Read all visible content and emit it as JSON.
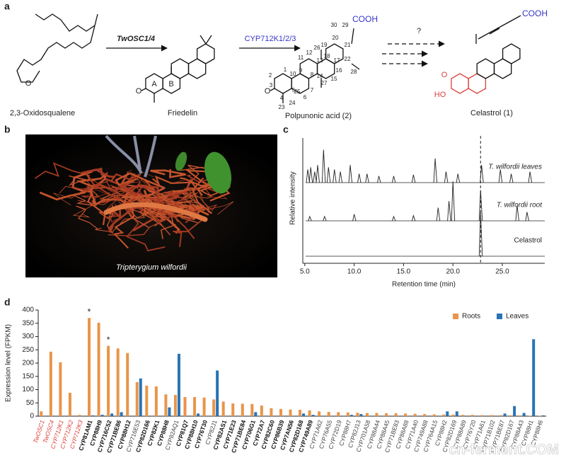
{
  "panel_a": {
    "label": "a",
    "substrate": "2,3-Oxidosqualene",
    "enzyme1": "TwOSC1/4",
    "product1": "Friedelin",
    "enzyme2": "CYP712K1/2/3",
    "product2": "Polpunonic acid (2)",
    "product3": "Celastrol (1)",
    "question": "?",
    "cooh_labels": [
      "COOH",
      "COOH"
    ],
    "ring_labels": [
      "A",
      "B"
    ],
    "heteroatoms": [
      "O",
      "O",
      "O",
      "O",
      "HO"
    ],
    "atom_numbers": [
      "1",
      "2",
      "3",
      "4",
      "5",
      "6",
      "7",
      "8",
      "9",
      "10",
      "11",
      "12",
      "13",
      "14",
      "15",
      "16",
      "17",
      "18",
      "19",
      "20",
      "21",
      "22",
      "23",
      "24",
      "25",
      "26",
      "27",
      "28",
      "29",
      "30"
    ]
  },
  "panel_b": {
    "label": "b",
    "caption": "Tripterygium wilfordii"
  },
  "panel_c": {
    "label": "c",
    "chart_data": {
      "type": "chromatogram",
      "x_label": "Retention time (min)",
      "y_label": "Relative intensity",
      "xlim": [
        4.8,
        29.3
      ],
      "xticks": [
        {
          "value": 5,
          "label": "5.0"
        },
        {
          "value": 10,
          "label": "10.0"
        },
        {
          "value": 15,
          "label": "15.0"
        },
        {
          "value": 20,
          "label": "20.0"
        },
        {
          "value": 25,
          "label": "25.0"
        }
      ],
      "ylim": [
        0,
        1
      ],
      "dashed_line_x": 22.8,
      "series": [
        {
          "name": "T. wilfordii leaves",
          "color": "#222222",
          "x": [
            5.3,
            5.6,
            6.0,
            6.3,
            6.9,
            7.4,
            8.0,
            8.6,
            9.6,
            10.5,
            11.3,
            12.5,
            14.0,
            16.0,
            18.2,
            19.3,
            20.5,
            22.9,
            24.8,
            25.9,
            27.8
          ],
          "values": [
            0.3,
            0.35,
            0.25,
            0.4,
            0.75,
            0.35,
            0.3,
            0.25,
            0.4,
            0.2,
            0.2,
            0.15,
            0.15,
            0.18,
            0.55,
            0.25,
            0.2,
            0.4,
            0.3,
            0.2,
            0.25
          ]
        },
        {
          "name": "T. wilfordii root",
          "color": "#222222",
          "x": [
            5.5,
            7.0,
            10.0,
            14.0,
            16.0,
            18.5,
            19.6,
            20.0,
            22.8,
            26.5,
            27.5
          ],
          "values": [
            0.1,
            0.1,
            0.15,
            0.1,
            0.12,
            0.3,
            0.45,
            0.9,
            0.7,
            0.35,
            0.2
          ]
        },
        {
          "name": "Celastrol",
          "color": "#222222",
          "x": [
            22.8
          ],
          "values": [
            1.0
          ]
        }
      ]
    }
  },
  "panel_d": {
    "label": "d",
    "chart_data": {
      "type": "bar",
      "y_label": "Expression level (FPKM)",
      "ylim": [
        0,
        400
      ],
      "yticks": [
        0,
        50,
        100,
        150,
        200,
        250,
        300,
        350,
        400
      ],
      "legend": "top-right",
      "categories": [
        "TwOSC1",
        "TwOSC4",
        "CYP712K1",
        "CYP712K2",
        "CYP712K3",
        "CYP81AM1",
        "CYP88H9",
        "CYP716C52",
        "CYP71BE86",
        "CYP88H12",
        "CYP716E53",
        "CYP82D166",
        "CYP82K1",
        "CYP88H8",
        "CYP82AQ1",
        "CYP81Q7",
        "CYP88H10",
        "CYP76T30",
        "CYP82J1",
        "CYP82AS1",
        "CYP71E23",
        "CYP71BE84",
        "CYP706G1",
        "CYP72A7",
        "CYP82C60",
        "CYP86B39",
        "CYP7AN56",
        "CYP82D168",
        "CYP749A89",
        "CYP71A62",
        "CYP76A55",
        "CYP72D19",
        "CYP88H7",
        "CYP82J13",
        "CYP701A58",
        "CYP88A44",
        "CYP88A45",
        "CYP71BE83",
        "CYP88A88",
        "CYP71A40",
        "CYP749A88",
        "CYP764A15",
        "CYP88H2",
        "CYP82D169",
        "CYP88A89",
        "CYP76Y20",
        "CYP71A61",
        "CYP71B102",
        "CYP71BE87",
        "CYP82D167",
        "CYP88A43",
        "CYP88H1",
        "CYP88H6"
      ],
      "label_colors": [
        "#d9403a",
        "#d9403a",
        "#d9403a",
        "#d9403a",
        "#d9403a",
        "#111111",
        "#111111",
        "#111111",
        "#111111",
        "#111111",
        "#444444",
        "#111111",
        "#111111",
        "#111111",
        "#444444",
        "#111111",
        "#111111",
        "#111111",
        "#444444",
        "#111111",
        "#111111",
        "#111111",
        "#111111",
        "#111111",
        "#111111",
        "#111111",
        "#111111",
        "#111111",
        "#111111",
        "#444444",
        "#444444",
        "#444444",
        "#444444",
        "#444444",
        "#444444",
        "#444444",
        "#444444",
        "#444444",
        "#444444",
        "#444444",
        "#444444",
        "#444444",
        "#444444",
        "#444444",
        "#444444",
        "#444444",
        "#444444",
        "#444444",
        "#444444",
        "#444444",
        "#444444",
        "#444444",
        "#444444"
      ],
      "bold_labels": [
        false,
        false,
        false,
        false,
        false,
        true,
        true,
        true,
        true,
        true,
        false,
        true,
        true,
        true,
        false,
        true,
        true,
        true,
        false,
        true,
        true,
        true,
        true,
        true,
        true,
        true,
        true,
        true,
        true,
        false,
        false,
        false,
        false,
        false,
        false,
        false,
        false,
        false,
        false,
        false,
        false,
        false,
        false,
        false,
        false,
        false,
        false,
        false,
        false,
        false,
        false,
        false,
        false
      ],
      "annotations": [
        {
          "text": "*",
          "category": "CYP81AM1"
        },
        {
          "text": "*",
          "category": "CYP716C52"
        }
      ],
      "series": [
        {
          "name": "Roots",
          "color": "#e8954a",
          "values": [
            18,
            243,
            203,
            88,
            5,
            370,
            352,
            265,
            255,
            238,
            128,
            115,
            112,
            82,
            80,
            72,
            72,
            70,
            63,
            55,
            48,
            47,
            46,
            40,
            30,
            27,
            25,
            24,
            22,
            18,
            16,
            15,
            14,
            13,
            12,
            12,
            11,
            11,
            10,
            9,
            8,
            7,
            6,
            6,
            5,
            5,
            4,
            4,
            4,
            3,
            3,
            2,
            2
          ]
        },
        {
          "name": "Leaves",
          "color": "#2a73b5",
          "values": [
            0,
            0,
            0,
            0,
            0,
            3,
            5,
            10,
            15,
            0,
            142,
            0,
            0,
            33,
            235,
            0,
            10,
            0,
            172,
            0,
            0,
            0,
            15,
            0,
            0,
            0,
            0,
            10,
            5,
            0,
            0,
            0,
            5,
            8,
            0,
            0,
            0,
            0,
            0,
            0,
            0,
            0,
            18,
            18,
            0,
            0,
            0,
            0,
            10,
            38,
            12,
            290,
            3
          ]
        }
      ]
    }
  },
  "watermark": "cn-ferment.COM"
}
